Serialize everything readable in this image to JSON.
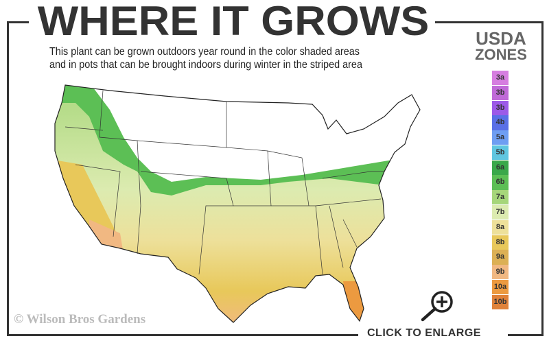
{
  "header": {
    "title": "WHERE IT GROWS",
    "subtitle_line1": "This plant can be grown outdoors year round in the color shaded areas",
    "subtitle_line2": "and in pots that can be brought indoors during winter in the striped area"
  },
  "legend": {
    "title_line1": "USDA",
    "title_line2": "ZONES",
    "zones": [
      {
        "label": "3a",
        "color": "#d67ee0"
      },
      {
        "label": "3b",
        "color": "#c06ad8"
      },
      {
        "label": "3b",
        "color": "#9c5ae8"
      },
      {
        "label": "4b",
        "color": "#5a6fe6"
      },
      {
        "label": "5a",
        "color": "#6e9ef2"
      },
      {
        "label": "5b",
        "color": "#5fc6e0"
      },
      {
        "label": "6a",
        "color": "#3aa84a"
      },
      {
        "label": "6b",
        "color": "#5cbf55"
      },
      {
        "label": "7a",
        "color": "#a6d67a"
      },
      {
        "label": "7b",
        "color": "#dcebb0"
      },
      {
        "label": "8a",
        "color": "#ede09a"
      },
      {
        "label": "8b",
        "color": "#e8c85a"
      },
      {
        "label": "9a",
        "color": "#dcb055"
      },
      {
        "label": "9b",
        "color": "#f1b882"
      },
      {
        "label": "10a",
        "color": "#ec9a40"
      },
      {
        "label": "10b",
        "color": "#e0823a"
      }
    ]
  },
  "map": {
    "shaded_zones": [
      "6a",
      "6b",
      "7a",
      "7b",
      "8a",
      "8b",
      "9a",
      "9b",
      "10a",
      "10b"
    ]
  },
  "footer": {
    "watermark": "© Wilson Bros Gardens",
    "enlarge_label": "CLICK TO ENLARGE",
    "zoom_icon": "magnifier-plus-icon"
  }
}
